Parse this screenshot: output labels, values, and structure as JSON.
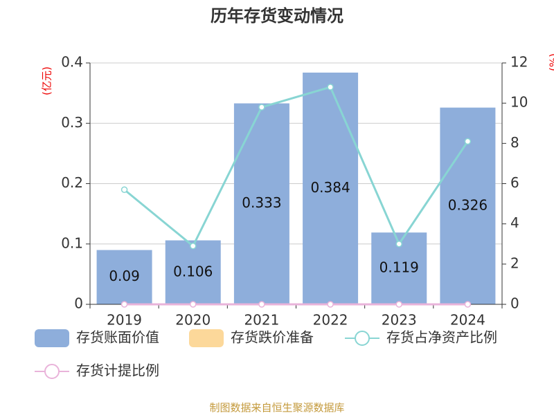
{
  "chart_data": {
    "type": "bar-line",
    "title": "历年存货变动情况",
    "ylabel": "(亿元)",
    "y2label": "(%)",
    "categories": [
      "2019",
      "2020",
      "2021",
      "2022",
      "2023",
      "2024"
    ],
    "series": [
      {
        "name": "存货账面价值",
        "type": "bar",
        "color": "#8eaedb",
        "values": [
          0.09,
          0.106,
          0.333,
          0.384,
          0.119,
          0.326
        ]
      },
      {
        "name": "存货跌价准备",
        "type": "bar",
        "color": "#fcd89a",
        "values": [
          0,
          0,
          0,
          0,
          0,
          0
        ]
      },
      {
        "name": "存货占净资产比例",
        "type": "line",
        "axis": "y2",
        "color": "#88d5d3",
        "values": [
          5.7,
          2.9,
          9.8,
          10.8,
          3.0,
          8.1
        ]
      },
      {
        "name": "存货计提比例",
        "type": "line",
        "axis": "y2",
        "color": "#e9b3da",
        "values": [
          0,
          0,
          0,
          0,
          0,
          0
        ]
      }
    ],
    "ylim": [
      0,
      0.4
    ],
    "yticks": [
      0,
      0.1,
      0.2,
      0.3,
      0.4
    ],
    "y2lim": [
      0,
      12
    ],
    "y2ticks": [
      0,
      2,
      4,
      6,
      8,
      10,
      12
    ],
    "grid": true,
    "source": "制图数据来自恒生聚源数据库"
  }
}
